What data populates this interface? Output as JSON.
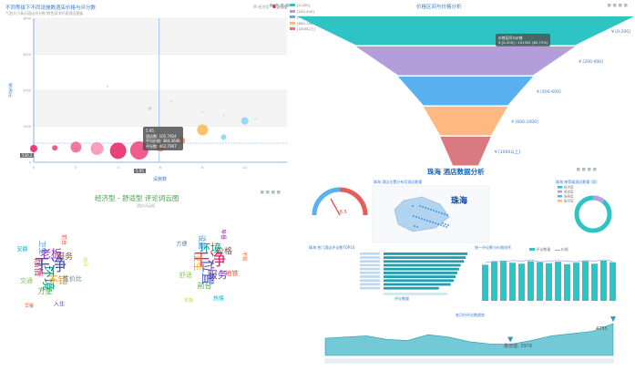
{
  "scatter": {
    "title": "不同等级下不同设施数酒店价格与评分数",
    "subtitle": "气泡大小表示酒店评分数 颜色深浅代表酒店星级",
    "legend": [
      {
        "label": "经济型",
        "color": "#cfd8dc"
      },
      {
        "label": "舒适型",
        "color": "#e91e63"
      }
    ],
    "xlabel": "设施数",
    "ylabel": "平均价格",
    "y_tick_labels": [
      "0",
      "1000",
      "2000",
      "3000",
      "4000"
    ],
    "x_tick_labels": [
      "0",
      "2",
      "4",
      "6",
      "8",
      "10"
    ],
    "cursor_x_label": "5.95",
    "cursor_y_label": "530.2",
    "tooltip": {
      "title": "5.95",
      "row1": "酒店数: 105.7924",
      "row2": "平均价格: 384.3648",
      "row3": "评分数: 462.7967"
    }
  },
  "funnel": {
    "title": "价格区间与价格分析",
    "legend": [
      {
        "label": "[0-200]",
        "color": "#2ec4c6"
      },
      {
        "label": "[200-400]",
        "color": "#b39ddb"
      },
      {
        "label": "[400-600]",
        "color": "#5ab1ef"
      },
      {
        "label": "[600-1000]",
        "color": "#ffb980"
      },
      {
        "label": "[1000以上]",
        "color": "#d87a80"
      }
    ],
    "labels": [
      "¥ [0-200]",
      "¥ [200-400]",
      "¥ [400-600]",
      "¥ [600-1000]",
      "¥ [1000以上]"
    ],
    "tooltip": {
      "title": "价格区间与价格",
      "row1": "¥ [0-200] : 101341 (62.73%)"
    }
  },
  "dashboard": {
    "title": "珠海 酒店数据分析",
    "map_title": "珠海 酒店位置分布及酒店数量",
    "map_label": "珠海",
    "gauge_value": "-6.5",
    "ring_title": "珠海 按等级酒店数量 (家)",
    "ring_legend": [
      {
        "label": "经济型",
        "color": "#2ec4c6"
      },
      {
        "label": "舒适型",
        "color": "#b6a2de"
      },
      {
        "label": "高档型",
        "color": "#5ab1ef"
      },
      {
        "label": "豪华型",
        "color": "#ffb980"
      }
    ],
    "hbar_title": "珠海 热门酒店评论数TOP10",
    "hbar_axis_label": "评论数量",
    "vbar_title": "统一评论数与价格排序",
    "vbar_legend": [
      "评论数量",
      "价格"
    ],
    "area_title": "各月份评论数趋势",
    "area_max_label": "4755",
    "area_min_label": "最低值: 2978"
  },
  "wordcloud": {
    "title": "经济型 - 舒适型 评论词云图",
    "subtitle": "酒店词云图",
    "left_words": [
      {
        "w": "干净",
        "c": "#3f51b5"
      },
      {
        "w": "环境",
        "c": "#009688"
      },
      {
        "w": "老板",
        "c": "#9c27b0"
      },
      {
        "w": "不错",
        "c": "#ff9800"
      },
      {
        "w": "热情",
        "c": "#e91e63"
      },
      {
        "w": "服务",
        "c": "#795548"
      },
      {
        "w": "方便",
        "c": "#4caf50"
      },
      {
        "w": "卫生",
        "c": "#2196f3"
      },
      {
        "w": "性价比",
        "c": "#607d8b"
      },
      {
        "w": "交通",
        "c": "#8bc34a"
      },
      {
        "w": "前台",
        "c": "#f44336"
      },
      {
        "w": "入住",
        "c": "#673ab7"
      },
      {
        "w": "安静",
        "c": "#00bcd4"
      },
      {
        "w": "房间",
        "c": "#cddc39"
      },
      {
        "w": "早餐",
        "c": "#ff5722"
      }
    ],
    "right_words": [
      {
        "w": "干净",
        "c": "#e91e63"
      },
      {
        "w": "位置",
        "c": "#3f51b5"
      },
      {
        "w": "环境",
        "c": "#009688"
      },
      {
        "w": "服务",
        "c": "#673ab7"
      },
      {
        "w": "卫生",
        "c": "#ff9800"
      },
      {
        "w": "价格",
        "c": "#795548"
      },
      {
        "w": "前台",
        "c": "#4caf50"
      },
      {
        "w": "设施",
        "c": "#2196f3"
      },
      {
        "w": "地铁",
        "c": "#f44336"
      },
      {
        "w": "舒适",
        "c": "#8bc34a"
      },
      {
        "w": "早餐",
        "c": "#9c27b0"
      },
      {
        "w": "热情",
        "c": "#00bcd4"
      },
      {
        "w": "方便",
        "c": "#607d8b"
      },
      {
        "w": "不错",
        "c": "#ff5722"
      },
      {
        "w": "安静",
        "c": "#cddc39"
      }
    ]
  },
  "chart_data": [
    {
      "type": "scatter",
      "title": "不同等级下不同设施数酒店价格与评分数",
      "xlabel": "设施数",
      "ylabel": "平均价格",
      "xlim": [
        0,
        12
      ],
      "ylim": [
        0,
        4000
      ],
      "series": [
        {
          "name": "经济型",
          "points": [
            {
              "x": 3.5,
              "y": 2100,
              "r": 1
            },
            {
              "x": 5.5,
              "y": 1500,
              "r": 2
            },
            {
              "x": 6.5,
              "y": 1700,
              "r": 1
            },
            {
              "x": 8,
              "y": 1400,
              "r": 1
            },
            {
              "x": 9,
              "y": 1300,
              "r": 1
            },
            {
              "x": 10.5,
              "y": 1200,
              "r": 1
            },
            {
              "x": 2,
              "y": 380,
              "r": 2
            }
          ]
        },
        {
          "name": "舒适型",
          "points": [
            {
              "x": 0,
              "y": 380,
              "r": 4
            },
            {
              "x": 1,
              "y": 400,
              "r": 3
            },
            {
              "x": 2,
              "y": 420,
              "r": 6
            },
            {
              "x": 3,
              "y": 380,
              "r": 7
            },
            {
              "x": 4,
              "y": 320,
              "r": 9
            },
            {
              "x": 5,
              "y": 330,
              "r": 10
            },
            {
              "x": 6,
              "y": 420,
              "r": 5
            },
            {
              "x": 7,
              "y": 600,
              "r": 4
            },
            {
              "x": 8,
              "y": 900,
              "r": 6
            },
            {
              "x": 9,
              "y": 700,
              "r": 3
            },
            {
              "x": 10,
              "y": 1150,
              "r": 4
            }
          ]
        }
      ]
    },
    {
      "type": "funnel",
      "title": "价格区间与价格分析",
      "categories": [
        "[0-200]",
        "[200-400]",
        "[400-600]",
        "[600-1000]",
        "[1000以上]"
      ],
      "values": [
        100,
        65,
        40,
        25,
        15
      ]
    },
    {
      "type": "bar",
      "title": "珠海 热门酒店评论数TOP10",
      "values": [
        100,
        98,
        96,
        92,
        90,
        88,
        86,
        84,
        80,
        66
      ]
    },
    {
      "type": "bar",
      "title": "统一评论数与价格排序",
      "series": [
        {
          "name": "评论数量",
          "values": [
            72,
            78,
            80,
            76,
            74,
            79,
            77,
            75,
            78,
            73,
            76,
            79,
            74,
            80,
            77
          ]
        },
        {
          "name": "价格",
          "values": [
            56,
            58,
            57,
            59,
            58,
            60,
            57,
            58,
            59,
            58,
            57,
            59,
            58,
            60,
            58
          ]
        }
      ]
    },
    {
      "type": "area",
      "title": "各月份评论数趋势",
      "values": [
        3500,
        3600,
        3700,
        3400,
        3300,
        3800,
        3600,
        3200,
        3000,
        2978,
        3300,
        3700,
        3900,
        4100,
        4755
      ],
      "ylim": [
        2000,
        5000
      ]
    }
  ]
}
